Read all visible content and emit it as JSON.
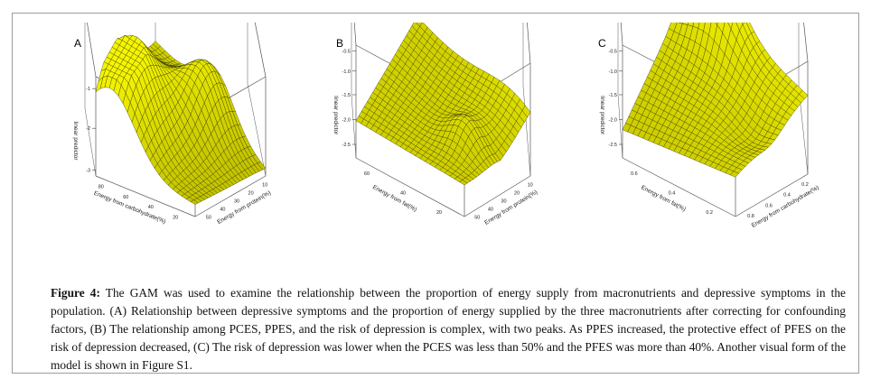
{
  "figure": {
    "panels": [
      {
        "label": "A",
        "zlabel": "linear predictor",
        "z_ticks": [
          "-1",
          "-2",
          "-3"
        ],
        "left_axis_label": "Energy from carbohydrate(%)",
        "left_ticks": [
          "80",
          "60",
          "40",
          "20"
        ],
        "right_axis_label": "Energy from protein(%)",
        "right_ticks": [
          "10",
          "20",
          "30",
          "40",
          "50"
        ]
      },
      {
        "label": "B",
        "zlabel": "linear predictor",
        "z_ticks": [
          "-0.5",
          "-1.0",
          "-1.5",
          "-2.0",
          "-2.5"
        ],
        "left_axis_label": "Energy from fat(%)",
        "left_ticks": [
          "60",
          "40",
          "20"
        ],
        "right_axis_label": "Energy from protein(%)",
        "right_ticks": [
          "10",
          "20",
          "30",
          "40",
          "50"
        ]
      },
      {
        "label": "C",
        "zlabel": "linear predictor",
        "z_ticks": [
          "-0.5",
          "-1.0",
          "-1.5",
          "-2.0",
          "-2.5"
        ],
        "left_axis_label": "Energy from fat(%)",
        "left_ticks": [
          "0.6",
          "0.4",
          "0.2"
        ],
        "right_axis_label": "Energy from carbohydrate(%)",
        "right_ticks": [
          "0.2",
          "0.4",
          "0.6",
          "0.8"
        ]
      }
    ],
    "surface_color": "#f5f500",
    "mesh_color": "#2b2b00",
    "caption_label": "Figure 4:",
    "caption_text": " The GAM was used to examine the relationship between the proportion of energy supply from macronutrients and depressive symptoms in the population. (A) Relationship between depressive symptoms and the proportion of energy supplied by the three macronutrients after correcting for confounding factors, (B) The relationship among PCES, PPES, and the risk of depression is complex, with two peaks. As PPES increased, the protective effect of PFES on the risk of depression decreased, (C) The risk of depression was lower when the PCES was less than 50% and the PFES was more than 40%. Another visual form of the model is shown in Figure S1."
  }
}
